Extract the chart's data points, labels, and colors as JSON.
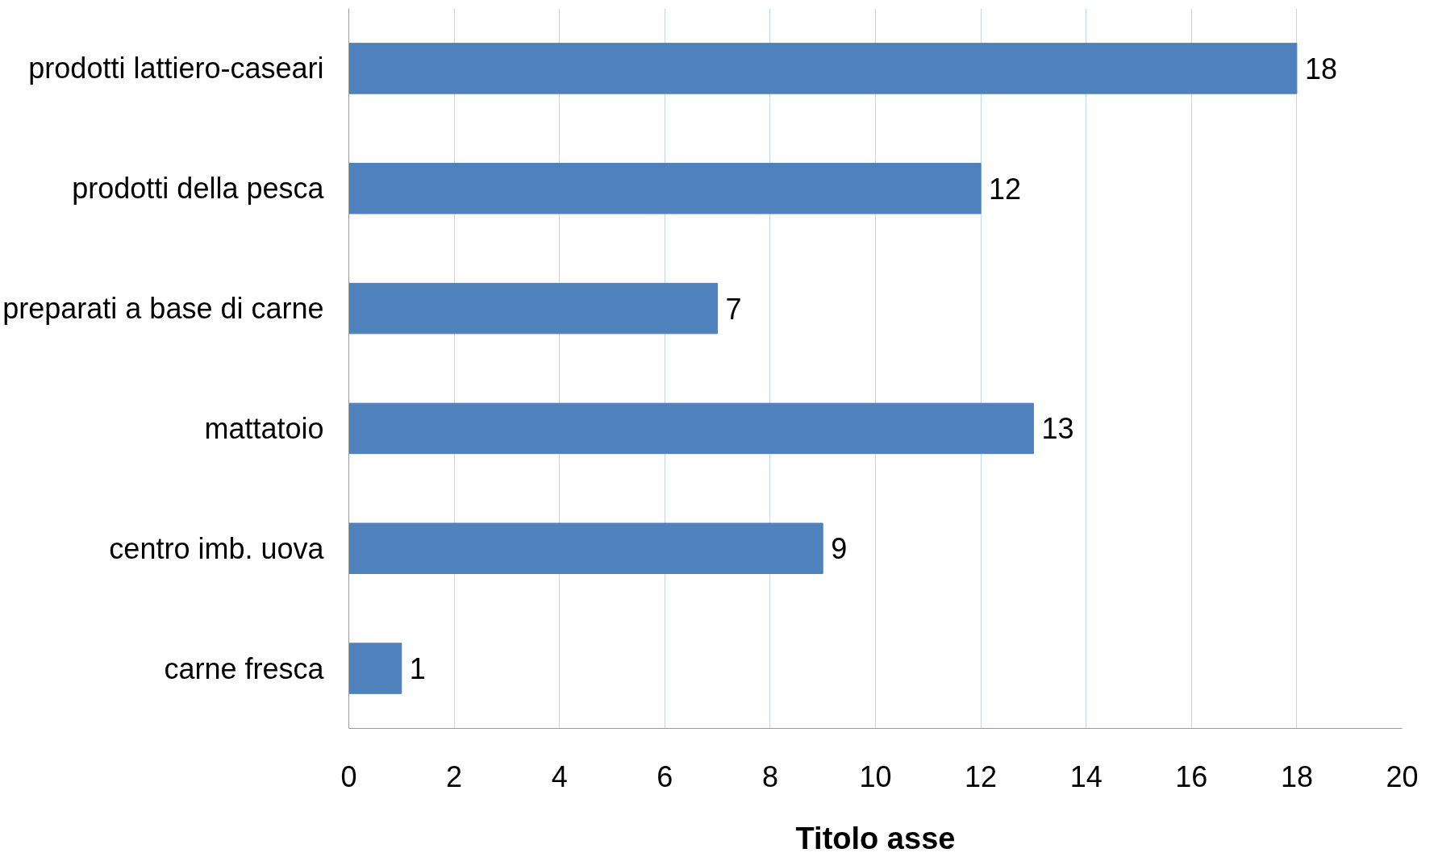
{
  "chart_data": {
    "type": "bar",
    "orientation": "horizontal",
    "xlabel": "Titolo asse",
    "categories": [
      "prodotti lattiero-caseari",
      "prodotti della pesca",
      "preparati a base di carne",
      "mattatoio",
      "centro imb. uova",
      "carne fresca"
    ],
    "values": [
      18,
      12,
      7,
      13,
      9,
      1
    ],
    "color": "#4f81bd",
    "xlim": [
      0,
      20
    ],
    "xticks": [
      0,
      2,
      4,
      6,
      8,
      10,
      12,
      14,
      16,
      18,
      20
    ],
    "grid": "x",
    "data_labels": true
  }
}
